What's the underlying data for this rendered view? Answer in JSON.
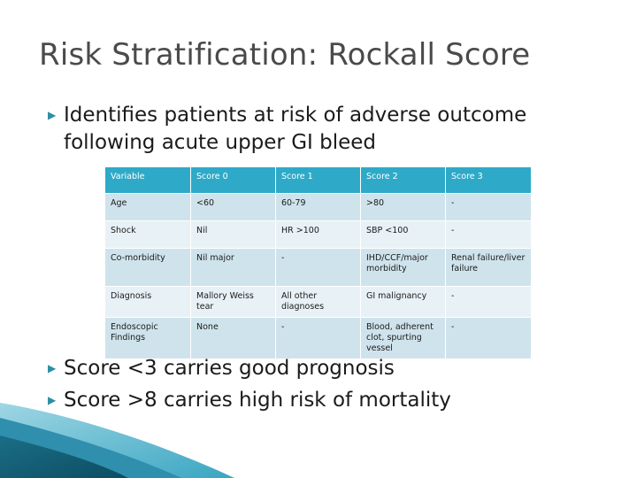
{
  "title": "Risk Stratification: Rockall Score",
  "bullets": {
    "marker": "▶",
    "intro": "Identifies patients at risk of adverse outcome following acute upper GI bleed",
    "point_1": "Score <3 carries good prognosis",
    "point_2": "Score >8 carries high risk of mortality"
  },
  "table": {
    "headers": [
      "Variable",
      "Score 0",
      "Score 1",
      "Score 2",
      "Score 3"
    ],
    "rows": [
      [
        "Age",
        "<60",
        "60-79",
        ">80",
        "-"
      ],
      [
        "Shock",
        "Nil",
        "HR >100",
        "SBP <100",
        "-"
      ],
      [
        "Co-morbidity",
        "Nil major",
        "-",
        "IHD/CCF/major morbidity",
        "Renal failure/liver failure"
      ],
      [
        "Diagnosis",
        "Mallory Weiss tear",
        "All other diagnoses",
        "GI malignancy",
        "-"
      ],
      [
        "Endoscopic Findings",
        "None",
        "-",
        "Blood, adherent clot, spurting vessel",
        "-"
      ]
    ]
  },
  "colors": {
    "header": "#2eaac8",
    "row_dark": "#cfe3ec",
    "row_light": "#e8f1f5",
    "accent": "#2d8fa5"
  }
}
